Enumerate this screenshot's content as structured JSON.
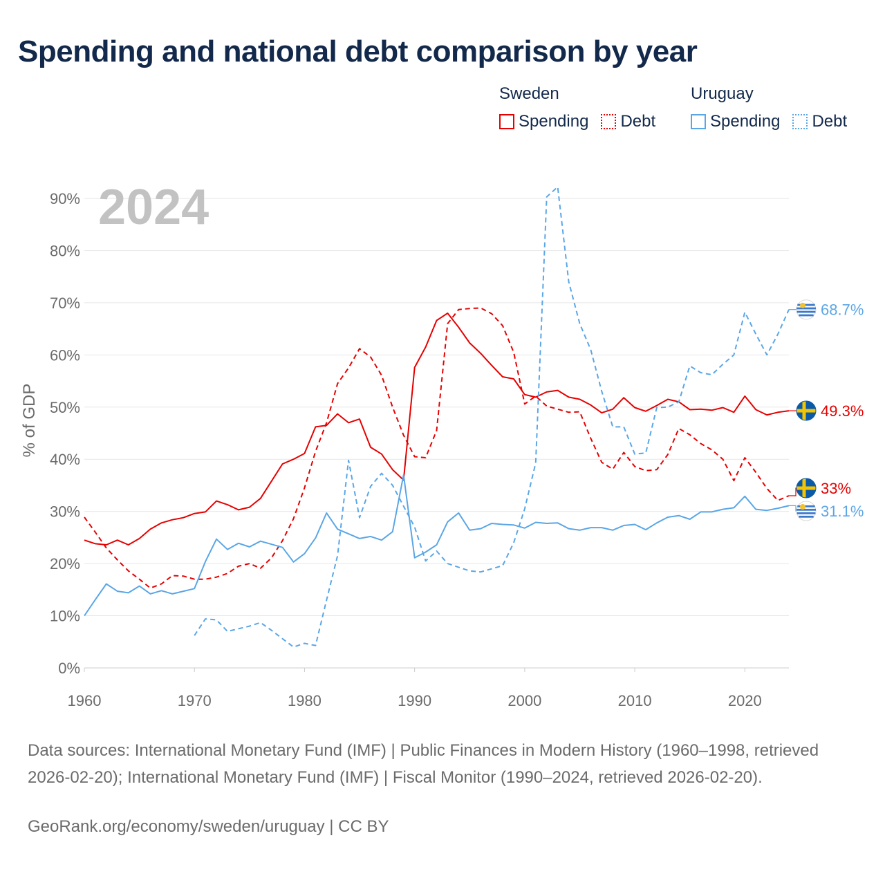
{
  "title": "Spending and national debt comparison by year",
  "legend": {
    "groups": [
      {
        "name": "Sweden",
        "color": "#e60000",
        "items": [
          {
            "label": "Spending",
            "style": "solid"
          },
          {
            "label": "Debt",
            "style": "dotted"
          }
        ]
      },
      {
        "name": "Uruguay",
        "color": "#5aa6e6",
        "items": [
          {
            "label": "Spending",
            "style": "solid"
          },
          {
            "label": "Debt",
            "style": "dotted"
          }
        ]
      }
    ]
  },
  "year_label": "2024",
  "chart_data": {
    "type": "line",
    "ylabel": "% of GDP",
    "xlabel": "",
    "xlim": [
      1960,
      2024
    ],
    "ylim": [
      0,
      90
    ],
    "x_ticks": [
      1960,
      1970,
      1980,
      1990,
      2000,
      2010,
      2020
    ],
    "y_ticks": [
      0,
      10,
      20,
      30,
      40,
      50,
      60,
      70,
      80,
      90
    ],
    "y_tick_labels": [
      "0%",
      "10%",
      "20%",
      "30%",
      "40%",
      "50%",
      "60%",
      "70%",
      "80%",
      "90%"
    ],
    "grid": true,
    "series": [
      {
        "name": "Sweden Spending",
        "color": "#e60000",
        "dash": "solid",
        "end_label": "49.3%",
        "x": [
          1960,
          1961,
          1962,
          1963,
          1964,
          1965,
          1966,
          1967,
          1968,
          1969,
          1970,
          1971,
          1972,
          1973,
          1974,
          1975,
          1976,
          1977,
          1978,
          1979,
          1980,
          1981,
          1982,
          1983,
          1984,
          1985,
          1986,
          1987,
          1988,
          1989,
          1990,
          1991,
          1992,
          1993,
          1994,
          1995,
          1996,
          1997,
          1998,
          1999,
          2000,
          2001,
          2002,
          2003,
          2004,
          2005,
          2006,
          2007,
          2008,
          2009,
          2010,
          2011,
          2012,
          2013,
          2014,
          2015,
          2016,
          2017,
          2018,
          2019,
          2020,
          2021,
          2022,
          2023,
          2024
        ],
        "values": [
          24.5,
          23.8,
          23.6,
          24.5,
          23.6,
          24.8,
          26.6,
          27.8,
          28.4,
          28.8,
          29.6,
          29.9,
          32.0,
          31.3,
          30.3,
          30.8,
          32.5,
          35.8,
          39.1,
          40.0,
          41.1,
          46.2,
          46.5,
          48.7,
          47.0,
          47.7,
          42.3,
          41.0,
          38.0,
          36.0,
          57.6,
          61.5,
          66.6,
          68.0,
          65.3,
          62.3,
          60.3,
          58.0,
          55.8,
          55.4,
          52.4,
          51.9,
          52.9,
          53.2,
          51.9,
          51.5,
          50.4,
          48.9,
          49.6,
          51.8,
          49.9,
          49.2,
          50.3,
          51.5,
          51.0,
          49.5,
          49.6,
          49.4,
          49.9,
          49.0,
          52.1,
          49.5,
          48.5,
          49.0,
          49.3
        ]
      },
      {
        "name": "Sweden Debt",
        "color": "#e60000",
        "dash": "dashed",
        "end_label": "33%",
        "x": [
          1960,
          1961,
          1962,
          1963,
          1964,
          1965,
          1966,
          1967,
          1968,
          1969,
          1970,
          1971,
          1972,
          1973,
          1974,
          1975,
          1976,
          1977,
          1978,
          1979,
          1980,
          1981,
          1982,
          1983,
          1984,
          1985,
          1986,
          1987,
          1988,
          1989,
          1990,
          1991,
          1992,
          1993,
          1994,
          1995,
          1996,
          1997,
          1998,
          1999,
          2000,
          2001,
          2002,
          2003,
          2004,
          2005,
          2006,
          2007,
          2008,
          2009,
          2010,
          2011,
          2012,
          2013,
          2014,
          2015,
          2016,
          2017,
          2018,
          2019,
          2020,
          2021,
          2022,
          2023,
          2024
        ],
        "values": [
          28.9,
          26.0,
          23.0,
          20.7,
          18.6,
          17.0,
          15.3,
          16.1,
          17.7,
          17.6,
          17.0,
          17.0,
          17.4,
          18.1,
          19.5,
          20.0,
          19.1,
          21.1,
          24.4,
          28.6,
          34.5,
          41.5,
          47.0,
          54.5,
          57.5,
          61.2,
          59.6,
          56.1,
          50.0,
          44.6,
          40.5,
          40.3,
          45.5,
          66.0,
          68.7,
          68.9,
          69.0,
          67.9,
          65.6,
          60.5,
          50.6,
          52.1,
          50.2,
          49.6,
          49.0,
          49.1,
          44.0,
          39.4,
          38.1,
          41.3,
          38.6,
          37.8,
          38.0,
          40.9,
          45.9,
          44.7,
          43.0,
          41.8,
          40.0,
          35.9,
          40.3,
          37.5,
          34.4,
          32.1,
          33.0
        ]
      },
      {
        "name": "Uruguay Spending",
        "color": "#5aa6e6",
        "dash": "solid",
        "end_label": "31.1%",
        "x": [
          1960,
          1961,
          1962,
          1963,
          1964,
          1965,
          1966,
          1967,
          1968,
          1969,
          1970,
          1971,
          1972,
          1973,
          1974,
          1975,
          1976,
          1977,
          1978,
          1979,
          1980,
          1981,
          1982,
          1983,
          1984,
          1985,
          1986,
          1987,
          1988,
          1989,
          1990,
          1991,
          1992,
          1993,
          1994,
          1995,
          1996,
          1997,
          1998,
          1999,
          2000,
          2001,
          2002,
          2003,
          2004,
          2005,
          2006,
          2007,
          2008,
          2009,
          2010,
          2011,
          2012,
          2013,
          2014,
          2015,
          2016,
          2017,
          2018,
          2019,
          2020,
          2021,
          2022,
          2023,
          2024
        ],
        "values": [
          10.0,
          13.1,
          16.1,
          14.7,
          14.4,
          15.7,
          14.2,
          14.8,
          14.2,
          14.7,
          15.2,
          20.4,
          24.7,
          22.7,
          23.9,
          23.2,
          24.3,
          23.7,
          23.1,
          20.3,
          21.9,
          24.9,
          29.7,
          26.6,
          25.7,
          24.8,
          25.2,
          24.5,
          26.1,
          37.0,
          21.1,
          22.2,
          23.6,
          28.0,
          29.7,
          26.4,
          26.7,
          27.7,
          27.5,
          27.4,
          26.8,
          27.9,
          27.7,
          27.8,
          26.7,
          26.4,
          26.9,
          26.9,
          26.4,
          27.3,
          27.5,
          26.5,
          27.8,
          28.9,
          29.2,
          28.5,
          29.9,
          29.9,
          30.4,
          30.7,
          32.9,
          30.4,
          30.2,
          30.6,
          31.1
        ]
      },
      {
        "name": "Uruguay Debt",
        "color": "#5aa6e6",
        "dash": "dashed",
        "end_label": "68.7%",
        "x": [
          1970,
          1971,
          1972,
          1973,
          1974,
          1975,
          1976,
          1977,
          1978,
          1979,
          1980,
          1981,
          1982,
          1983,
          1984,
          1985,
          1986,
          1987,
          1988,
          1989,
          1990,
          1991,
          1992,
          1993,
          1994,
          1995,
          1996,
          1997,
          1998,
          1999,
          2000,
          2001,
          2002,
          2003,
          2004,
          2005,
          2006,
          2007,
          2008,
          2009,
          2010,
          2011,
          2012,
          2013,
          2014,
          2015,
          2016,
          2017,
          2018,
          2019,
          2020,
          2021,
          2022,
          2023,
          2024
        ],
        "values": [
          6.2,
          9.4,
          9.2,
          7.0,
          7.5,
          8.0,
          8.7,
          7.2,
          5.6,
          4.0,
          4.7,
          4.3,
          13.0,
          21.5,
          39.8,
          28.8,
          34.8,
          37.3,
          35.0,
          31.0,
          27.0,
          20.5,
          22.4,
          20.0,
          19.3,
          18.6,
          18.4,
          19.0,
          19.6,
          24.0,
          30.5,
          39.3,
          90.3,
          92.2,
          74.0,
          66.0,
          61.0,
          53.0,
          46.2,
          46.2,
          41.0,
          41.2,
          49.9,
          50.0,
          51.0,
          57.9,
          56.6,
          56.2,
          58.2,
          60.0,
          68.2,
          64.0,
          60.0,
          64.0,
          68.7
        ]
      }
    ]
  },
  "flags": {
    "sweden": "sweden-flag",
    "uruguay": "uruguay-flag"
  },
  "footer": {
    "source": "Data sources: International Monetary Fund (IMF) | Public Finances in Modern History (1960–1998, retrieved 2026-02-20); International Monetary Fund (IMF) | Fiscal Monitor (1990–2024, retrieved 2026-02-20).",
    "credit": "GeoRank.org/economy/sweden/uruguay | CC BY"
  }
}
